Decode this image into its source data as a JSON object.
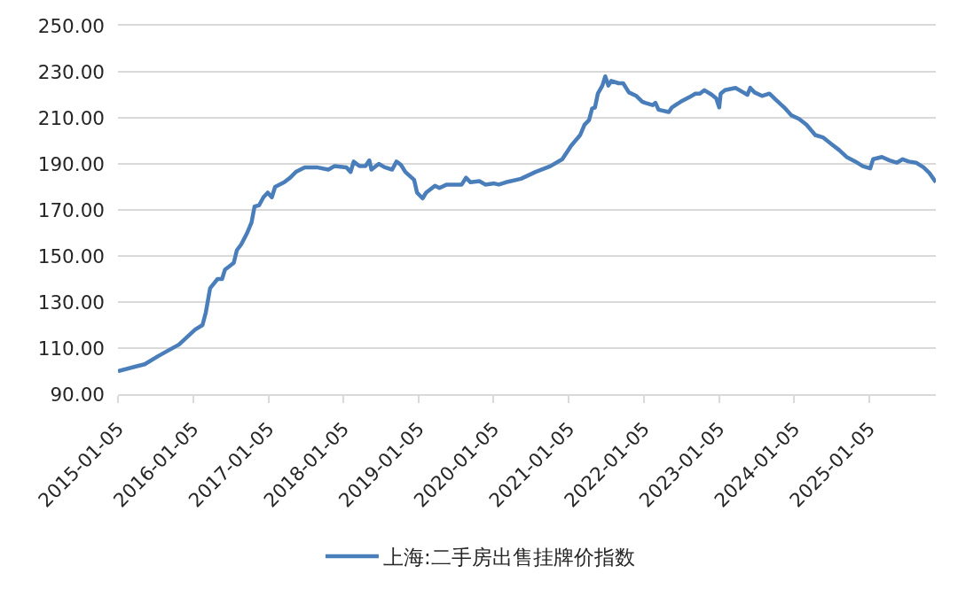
{
  "chart_data": {
    "type": "line",
    "series": [
      {
        "name": "上海:二手房出售挂牌价指数",
        "color": "#4a7ebb",
        "x": [
          "2015-01-05",
          "2015-04-02",
          "2015-05-15",
          "2015-07-19",
          "2015-09-07",
          "2015-10-28",
          "2015-12-03",
          "2016-01-15",
          "2016-02-20",
          "2016-03-07",
          "2016-03-28",
          "2016-05-03",
          "2016-05-25",
          "2016-06-08",
          "2016-07-21",
          "2016-08-05",
          "2016-08-26",
          "2016-09-24",
          "2016-10-15",
          "2016-10-30",
          "2016-11-21",
          "2016-12-12",
          "2017-01-02",
          "2017-01-22",
          "2017-02-07",
          "2017-03-23",
          "2017-04-21",
          "2017-05-19",
          "2017-07-01",
          "2017-08-28",
          "2017-10-24",
          "2017-11-22",
          "2018-01-19",
          "2018-02-09",
          "2018-02-24",
          "2018-03-24",
          "2018-04-22",
          "2018-05-11",
          "2018-05-21",
          "2018-06-26",
          "2018-07-25",
          "2018-08-30",
          "2018-09-20",
          "2018-10-12",
          "2018-11-02",
          "2018-12-15",
          "2018-12-29",
          "2019-01-25",
          "2019-02-11",
          "2019-03-26",
          "2019-04-17",
          "2019-05-22",
          "2019-08-03",
          "2019-08-24",
          "2019-09-15",
          "2019-10-28",
          "2019-11-26",
          "2020-01-08",
          "2020-01-30",
          "2020-03-05",
          "2020-05-17",
          "2020-07-27",
          "2020-10-07",
          "2020-12-04",
          "2021-01-17",
          "2021-03-01",
          "2021-03-22",
          "2021-04-13",
          "2021-04-28",
          "2021-05-12",
          "2021-05-26",
          "2021-06-17",
          "2021-07-01",
          "2021-07-16",
          "2021-07-30",
          "2021-09-04",
          "2021-09-26",
          "2021-10-24",
          "2021-11-29",
          "2021-12-28",
          "2022-01-11",
          "2022-02-16",
          "2022-03-02",
          "2022-03-17",
          "2022-05-06",
          "2022-05-21",
          "2022-07-03",
          "2022-08-15",
          "2022-09-12",
          "2022-10-04",
          "2022-10-26",
          "2022-12-01",
          "2022-12-22",
          "2023-01-06",
          "2023-01-13",
          "2023-02-03",
          "2023-03-26",
          "2023-04-24",
          "2023-05-23",
          "2023-06-06",
          "2023-06-27",
          "2023-08-02",
          "2023-09-07",
          "2023-10-06",
          "2023-11-18",
          "2023-12-24",
          "2024-01-29",
          "2024-03-05",
          "2024-04-17",
          "2024-05-24",
          "2024-07-06",
          "2024-08-11",
          "2024-09-16",
          "2024-10-29",
          "2024-12-04",
          "2025-01-09",
          "2025-01-23",
          "2025-03-07",
          "2025-04-13",
          "2025-05-18",
          "2025-06-16",
          "2025-07-15",
          "2025-08-20",
          "2025-09-25",
          "2025-10-24",
          "2025-11-24"
        ],
        "values": [
          100,
          102,
          103,
          106.5,
          109,
          111.5,
          114.5,
          118,
          120,
          125.5,
          136,
          140,
          140,
          144,
          147,
          152.5,
          155,
          160,
          164.5,
          171.5,
          172,
          175.5,
          177.5,
          175.5,
          180,
          182,
          184,
          186.5,
          188.5,
          188.5,
          187.5,
          189,
          188.5,
          186.5,
          191,
          189,
          189,
          191.5,
          187.5,
          190,
          188.5,
          187.5,
          191,
          189.5,
          186.5,
          183,
          177.5,
          175,
          177.5,
          180.5,
          179.5,
          181,
          181,
          184,
          182,
          182.5,
          181,
          181.5,
          181,
          182,
          183.5,
          186.5,
          189,
          192,
          198,
          202.5,
          207,
          209,
          214,
          214.5,
          220.5,
          224,
          228,
          224,
          226,
          225,
          225,
          221,
          219.5,
          217,
          216.5,
          215.5,
          216.5,
          213.5,
          212.5,
          214.5,
          217,
          219,
          220.5,
          220.5,
          222,
          220,
          218.5,
          214.5,
          220.5,
          222,
          223,
          221.5,
          220,
          223,
          221,
          219.5,
          220.5,
          218,
          214.5,
          211,
          209.5,
          207,
          202.5,
          201.5,
          198.5,
          196,
          193,
          191,
          189,
          188,
          192,
          193,
          191.5,
          190.5,
          192,
          191,
          190.5,
          188.5,
          186,
          182
        ]
      }
    ],
    "xlim": [
      "2015-01-05",
      "2025-11-24"
    ],
    "xticks": [
      "2015-01-05",
      "2016-01-05",
      "2017-01-05",
      "2018-01-05",
      "2019-01-05",
      "2020-01-05",
      "2021-01-05",
      "2022-01-05",
      "2023-01-05",
      "2024-01-05",
      "2025-01-05"
    ],
    "ylim": [
      90,
      250
    ],
    "yticks": [
      {
        "value": 90,
        "label": "90.00"
      },
      {
        "value": 110,
        "label": "110.00"
      },
      {
        "value": 130,
        "label": "130.00"
      },
      {
        "value": 150,
        "label": "150.00"
      },
      {
        "value": 170,
        "label": "170.00"
      },
      {
        "value": 190,
        "label": "190.00"
      },
      {
        "value": 210,
        "label": "210.00"
      },
      {
        "value": 230,
        "label": "230.00"
      },
      {
        "value": 250,
        "label": "250.00"
      }
    ],
    "grid": "y",
    "legend": "bottom",
    "line_style": "solid"
  }
}
